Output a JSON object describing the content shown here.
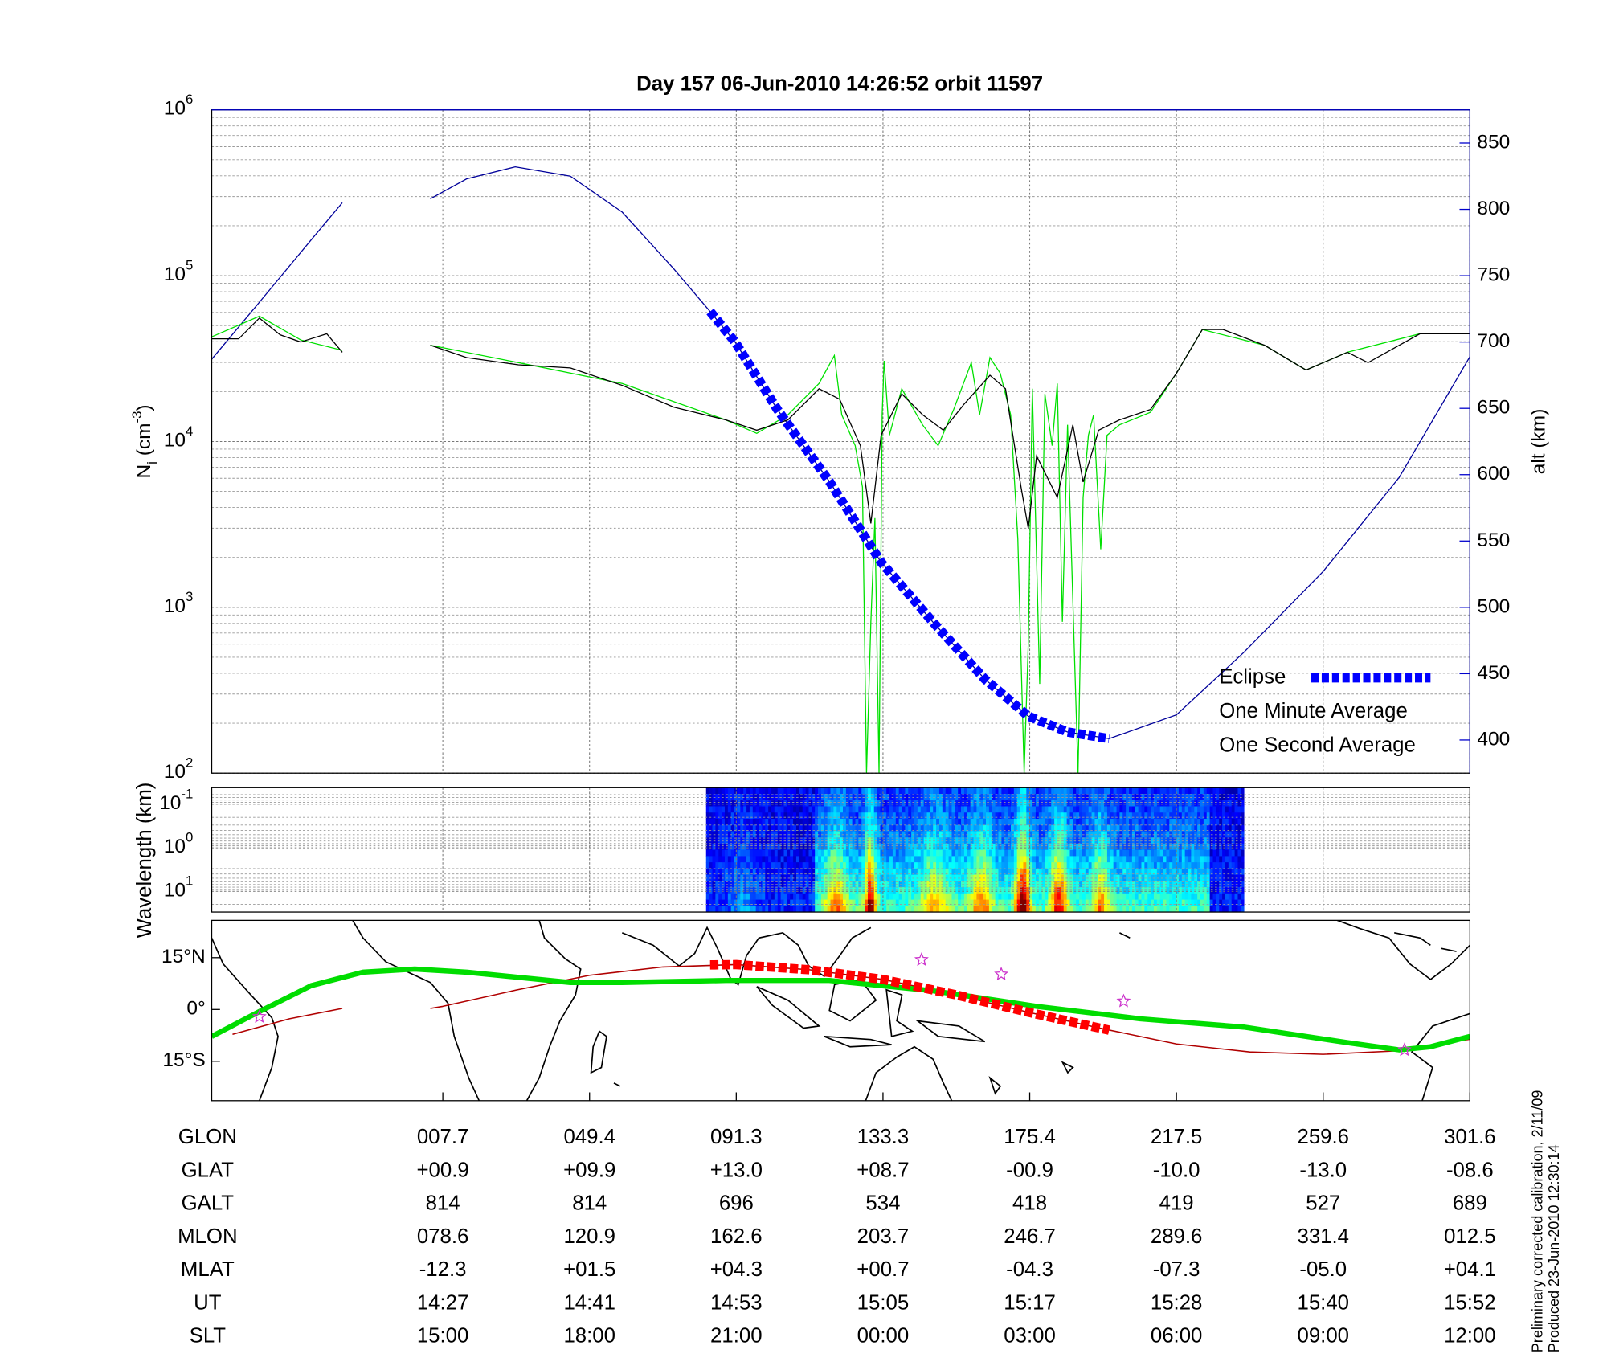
{
  "chart_data": [
    {
      "type": "line",
      "title": "Day 157  06-Jun-2010 14:26:52   orbit 11597",
      "ylabel_parts": [
        {
          "text": "N"
        },
        {
          "text": "i",
          "shift": "sub"
        },
        {
          "text": " (cm"
        },
        {
          "text": "-3",
          "shift": "super"
        },
        {
          "text": ")"
        }
      ],
      "y2label": "alt (km)",
      "y2color": "#0000cc",
      "xlim": [
        -1.575,
        7
      ],
      "xticks": [
        0,
        1,
        2,
        3,
        4,
        5,
        6,
        7
      ],
      "ylim": [
        100,
        1000000
      ],
      "ylog": true,
      "yticks": [
        {
          "value": 100,
          "label": "10",
          "exponent": "2"
        },
        {
          "value": 1000,
          "label": "10",
          "exponent": "3"
        },
        {
          "value": 10000,
          "label": "10",
          "exponent": "4"
        },
        {
          "value": 100000,
          "label": "10",
          "exponent": "5"
        },
        {
          "value": 1000000,
          "label": "10",
          "exponent": "6"
        }
      ],
      "yminor": [
        200,
        300,
        400,
        500,
        600,
        700,
        800,
        900,
        2000,
        3000,
        4000,
        5000,
        6000,
        7000,
        8000,
        9000,
        20000,
        30000,
        40000,
        50000,
        60000,
        70000,
        80000,
        90000,
        200000,
        300000,
        400000,
        500000,
        600000,
        700000,
        800000,
        900000
      ],
      "y2lim": [
        375,
        875
      ],
      "y2ticks": [
        400,
        450,
        500,
        550,
        600,
        650,
        700,
        750,
        800,
        850
      ],
      "grid": true,
      "legend": "lower right",
      "series": [
        {
          "axis": "y2",
          "color": "#00009a",
          "style": "line",
          "x": [
            -1.575,
            -1.25,
            -0.897,
            -0.685,
            -0.4,
            -0.085,
            0.162,
            0.494,
            0.869,
            1.222,
            1.575,
            1.822,
            1.992,
            2.281,
            2.634,
            2.987,
            3.34,
            3.693,
            3.99,
            4.258,
            4.541,
            5.0,
            5.459,
            6.0,
            6.518,
            7
          ],
          "values": [
            687,
            730,
            777,
            805,
            null,
            808,
            823,
            832,
            825,
            798,
            755,
            723,
            700,
            649,
            595,
            534,
            489,
            446,
            418,
            406,
            401,
            419,
            466,
            527,
            598,
            689
          ]
        },
        {
          "name": "One Second Average",
          "color": "#00e000",
          "style": "line",
          "x": [
            -1.575,
            -1.25,
            -0.968,
            -0.685,
            -0.4,
            -0.085,
            0.516,
            1.222,
            1.928,
            2.14,
            2.352,
            2.564,
            2.669,
            2.719,
            2.811,
            2.86,
            2.888,
            2.917,
            2.945,
            2.973,
            2.994,
            3.008,
            3.044,
            3.128,
            3.27,
            3.376,
            3.482,
            3.602,
            3.658,
            3.729,
            3.799,
            3.87,
            3.919,
            3.962,
            3.99,
            4.018,
            4.068,
            4.103,
            4.153,
            4.188,
            4.223,
            4.258,
            4.329,
            4.364,
            4.4,
            4.435,
            4.484,
            4.527,
            4.612,
            4.823,
            5.0,
            5.176,
            5.6,
            5.883,
            6.165,
            6.66,
            7
          ],
          "values": [
            42800,
            57000,
            41000,
            35500,
            null,
            38100,
            29900,
            22400,
            13500,
            11200,
            14500,
            22400,
            33000,
            14500,
            9440,
            5310,
            100,
            818,
            3450,
            100,
            14500,
            30700,
            10900,
            20800,
            12600,
            9440,
            15600,
            29900,
            14500,
            32100,
            25800,
            14500,
            2590,
            100,
            613,
            20800,
            345,
            19400,
            9440,
            22400,
            818,
            12600,
            100,
            4600,
            10900,
            14500,
            2240,
            10900,
            12600,
            15000,
            25800,
            47300,
            38100,
            27000,
            34500,
            44700,
            44700
          ]
        },
        {
          "name": "One Minute Average",
          "color": "#000000",
          "style": "line",
          "x": [
            -1.575,
            -1.391,
            -1.25,
            -1.109,
            -0.968,
            -0.791,
            -0.685,
            -0.4,
            -0.085,
            0.162,
            0.516,
            0.869,
            1.222,
            1.575,
            1.928,
            2.14,
            2.352,
            2.564,
            2.705,
            2.846,
            2.917,
            2.987,
            3.128,
            3.27,
            3.411,
            3.552,
            3.729,
            3.835,
            3.941,
            3.99,
            4.047,
            4.188,
            4.294,
            4.364,
            4.47,
            4.612,
            4.823,
            5.0,
            5.176,
            5.318,
            5.6,
            5.883,
            6.165,
            6.306,
            6.66,
            7
          ],
          "values": [
            41600,
            41600,
            55500,
            44000,
            39800,
            44700,
            34500,
            null,
            38100,
            32100,
            29000,
            27800,
            21800,
            16100,
            13500,
            11700,
            13500,
            20800,
            18000,
            9440,
            3210,
            10900,
            19400,
            14500,
            11700,
            16800,
            25100,
            20800,
            5310,
            2990,
            8180,
            4600,
            12600,
            5700,
            11700,
            13500,
            15600,
            25800,
            47300,
            47300,
            38100,
            27000,
            34500,
            29900,
            44700,
            44700
          ]
        },
        {
          "name": "Eclipse",
          "axis": "y2",
          "color": "#0000ff",
          "style": "squares",
          "x": [
            1.822,
            1.992,
            2.281,
            2.634,
            2.987,
            3.34,
            3.693,
            3.99,
            4.258,
            4.541
          ],
          "values": [
            723,
            700,
            649,
            595,
            534,
            489,
            446,
            418,
            406,
            401
          ]
        }
      ]
    },
    {
      "type": "heatmap",
      "ylabel": "Wavelength (km)",
      "xlim": [
        -1.575,
        7
      ],
      "xticks": [
        0,
        1,
        2,
        3,
        4,
        5,
        6,
        7
      ],
      "ylim": [
        0.0416,
        29.9
      ],
      "ylog": true,
      "yreverse": true,
      "yticks": [
        {
          "value": 0.1,
          "label": "10",
          "exponent": "-1"
        },
        {
          "value": 1,
          "label": "10",
          "exponent": "0"
        },
        {
          "value": 10,
          "label": "10",
          "exponent": "1"
        }
      ],
      "yminor": [
        0.05,
        0.06,
        0.07,
        0.08,
        0.09,
        0.2,
        0.3,
        0.4,
        0.5,
        0.6,
        0.7,
        0.8,
        0.9,
        2,
        3,
        4,
        5,
        6,
        7,
        8,
        9,
        20
      ],
      "extent": [
        1.794,
        5.445
      ],
      "grid": true
    },
    {
      "type": "map",
      "xlim": [
        -1.575,
        7
      ],
      "xticks": [
        0,
        1,
        2,
        3,
        4,
        5,
        6,
        7
      ],
      "ylim": [
        -26.4,
        25.8
      ],
      "yticks": [
        {
          "value": 15,
          "label": "15°N"
        },
        {
          "value": 0,
          "label": "0°"
        },
        {
          "value": -15,
          "label": "15°S"
        }
      ],
      "series": [
        {
          "color": "#b00000",
          "style": "line",
          "x": [
            -1.433,
            -1.045,
            -0.685,
            -0.4,
            -0.085,
            0,
            0.5,
            1,
            1.5,
            2,
            2.5,
            3,
            3.5,
            4,
            4.5,
            5,
            5.5,
            6,
            6.5,
            7
          ],
          "values": [
            -7.2,
            -2.7,
            0.3,
            null,
            0.3,
            0.9,
            5.6,
            9.9,
            12.3,
            13.0,
            11.5,
            8.7,
            4.2,
            -0.9,
            -5.6,
            -10.0,
            -12.3,
            -13.0,
            -12.0,
            -8.6
          ]
        },
        {
          "color": "#00dd00",
          "style": "thick",
          "x": [
            -1.575,
            -1.25,
            -0.897,
            -0.544,
            -0.191,
            0.162,
            0.516,
            0.869,
            1.222,
            1.928,
            2.634,
            3.34,
            4.047,
            4.753,
            5.459,
            6.165,
            6.518,
            6.73,
            7
          ],
          "values": [
            -7.8,
            -0.6,
            6.9,
            10.8,
            11.7,
            10.8,
            9.3,
            7.8,
            7.8,
            8.4,
            8.4,
            5.4,
            0.9,
            -2.7,
            -5.1,
            -9.6,
            -11.7,
            -10.8,
            -7.8
          ]
        },
        {
          "color": "#ff0000",
          "style": "squares",
          "x": [
            1.822,
            2,
            2.5,
            3,
            3.5,
            4,
            4.541
          ],
          "values": [
            12.9,
            13.0,
            11.5,
            8.7,
            4.2,
            -0.9,
            -6.0
          ]
        },
        {
          "color": "#cc33cc",
          "style": "star",
          "x": [
            -1.25,
            3.263,
            3.806,
            4.64,
            6.554
          ],
          "values": [
            -2.1,
            14.4,
            10.2,
            2.4,
            -11.7
          ]
        }
      ]
    }
  ],
  "table": {
    "rows": [
      {
        "label": "GLON",
        "values": [
          "007.7",
          "049.4",
          "091.3",
          "133.3",
          "175.4",
          "217.5",
          "259.6",
          "301.6"
        ]
      },
      {
        "label": "GLAT",
        "values": [
          "+00.9",
          "+09.9",
          "+13.0",
          "+08.7",
          "-00.9",
          "-10.0",
          "-13.0",
          "-08.6"
        ]
      },
      {
        "label": "GALT",
        "values": [
          "814",
          "814",
          "696",
          "534",
          "418",
          "419",
          "527",
          "689"
        ]
      },
      {
        "label": "MLON",
        "values": [
          "078.6",
          "120.9",
          "162.6",
          "203.7",
          "246.7",
          "289.6",
          "331.4",
          "012.5"
        ]
      },
      {
        "label": "MLAT",
        "values": [
          "-12.3",
          "+01.5",
          "+04.3",
          "+00.7",
          "-04.3",
          "-07.3",
          "-05.0",
          "+04.1"
        ]
      },
      {
        "label": "UT",
        "values": [
          "14:27",
          "14:41",
          "14:53",
          "15:05",
          "15:17",
          "15:28",
          "15:40",
          "15:52"
        ]
      },
      {
        "label": "SLT",
        "values": [
          "15:00",
          "18:00",
          "21:00",
          "00:00",
          "03:00",
          "06:00",
          "09:00",
          "12:00"
        ]
      }
    ]
  },
  "notes": [
    "Preliminary corrected calibration, 2/11/09",
    "Produced 23-Jun-2010 12:30:14"
  ]
}
